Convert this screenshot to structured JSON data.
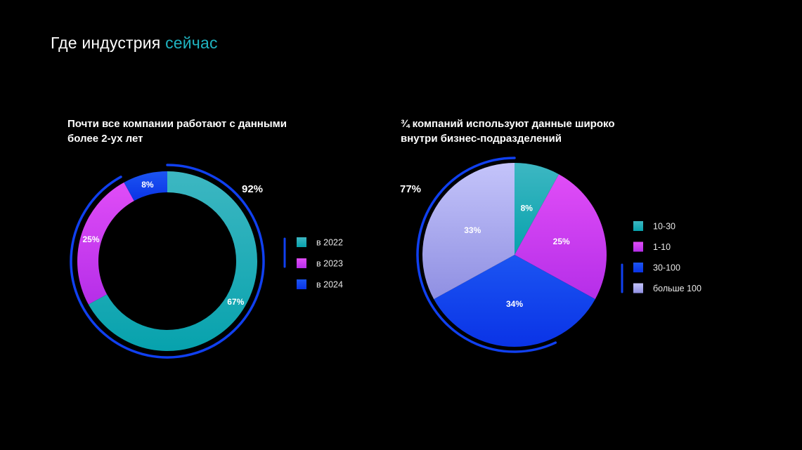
{
  "slide": {
    "title_main": "Где индустрия",
    "title_accent": "сейчас",
    "accent_color": "#1fb3c0"
  },
  "chart_data": [
    {
      "type": "pie",
      "variant": "donut",
      "title_lines": [
        "Почти все компании работают с данными",
        "более 2-ух лет"
      ],
      "labels": [
        "в 2022",
        "в 2023",
        "в 2024"
      ],
      "values": [
        67,
        25,
        8
      ],
      "value_labels": [
        "67%",
        "25%",
        "8%"
      ],
      "colors": [
        "#12a9b4",
        "#cc3bf0",
        "#1043ee"
      ],
      "legend_placement": "right",
      "annotation": {
        "text": "92%",
        "description_of_arc": "outer highlight arc covering в 2022 + в 2023",
        "value": 92
      }
    },
    {
      "type": "pie",
      "title_lines": [
        "¾ компаний используют данные широко",
        "внутри бизнес-подразделений"
      ],
      "labels": [
        "10-30",
        "1-10",
        "30-100",
        "больше 100"
      ],
      "values": [
        8,
        25,
        34,
        33
      ],
      "value_labels": [
        "8%",
        "25%",
        "34%",
        "33%"
      ],
      "colors": [
        "#12a9b4",
        "#cc3bf0",
        "#1043ee",
        "#b4b4f4"
      ],
      "legend_placement": "right",
      "annotation": {
        "text": "77%",
        "description_of_arc": "outer highlight arc",
        "value": 77
      }
    }
  ]
}
